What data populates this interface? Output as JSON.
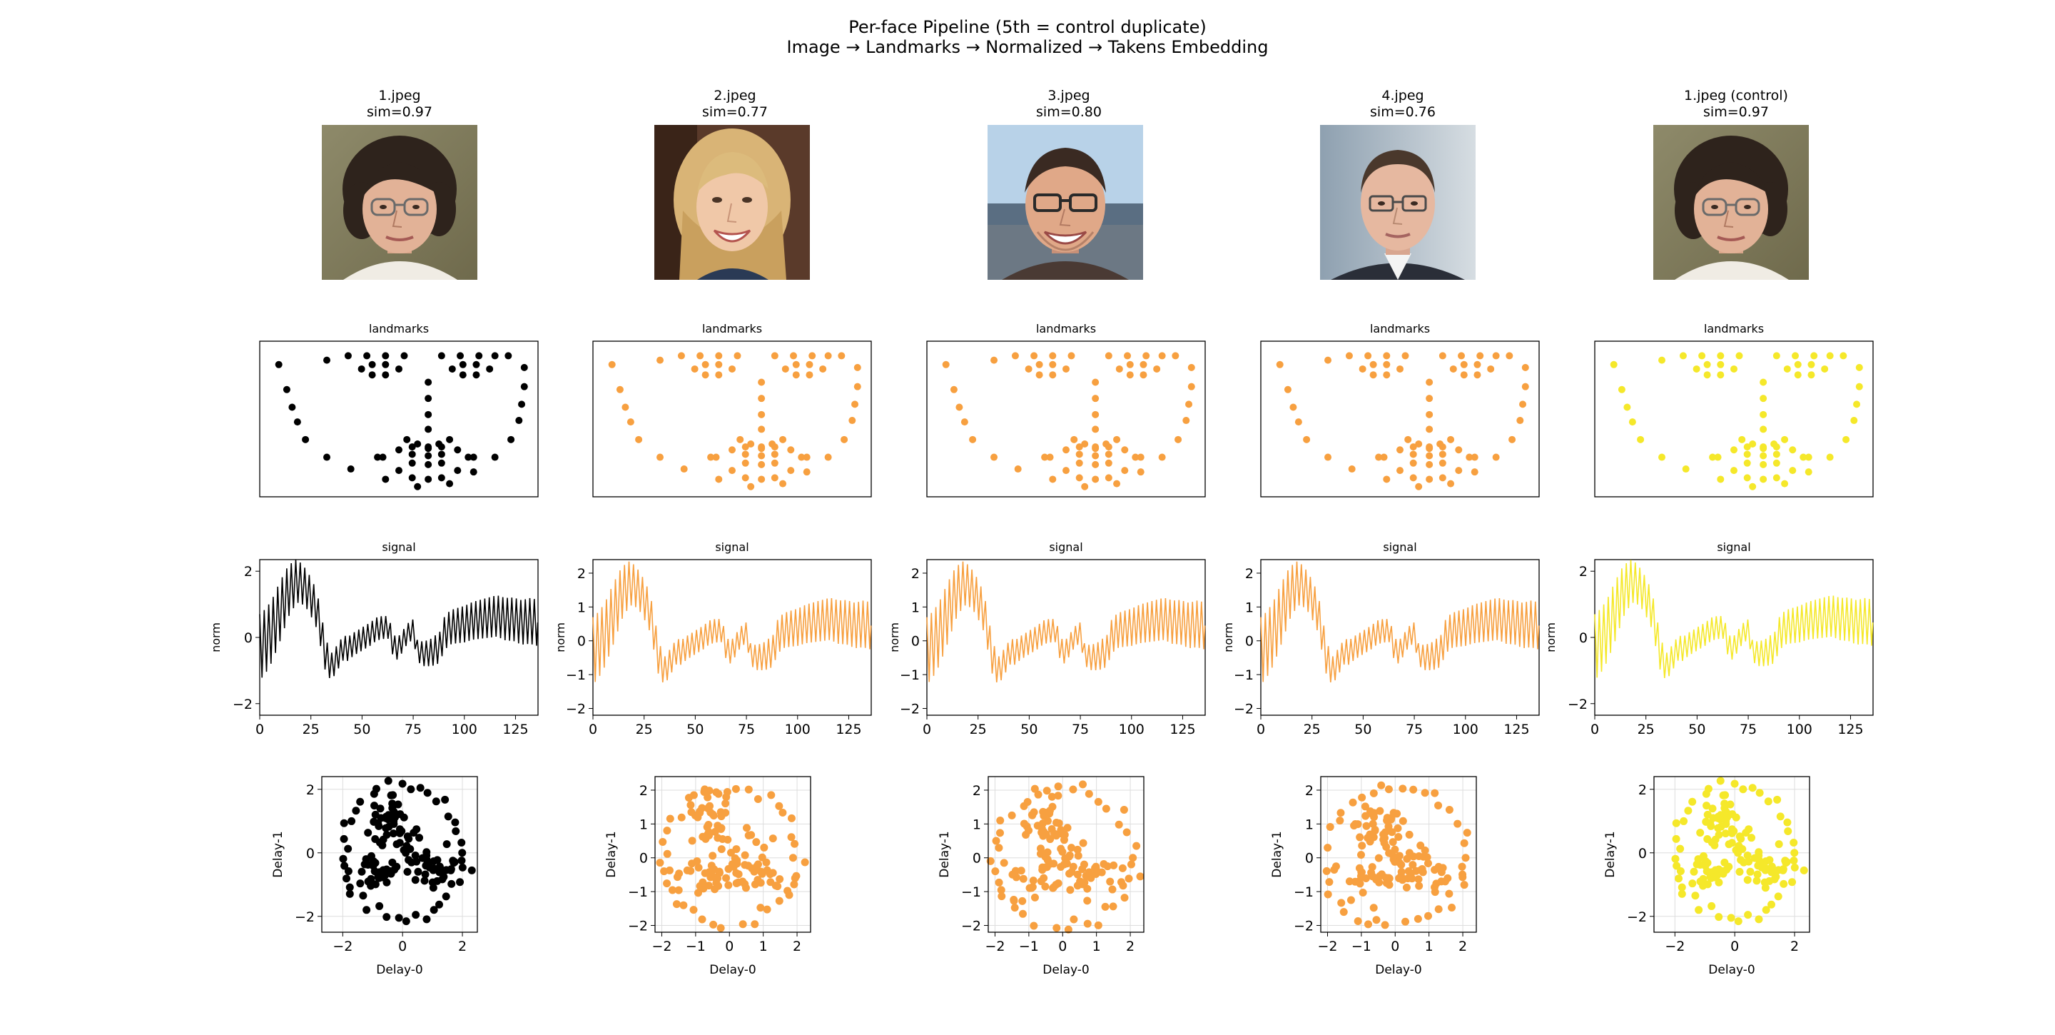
{
  "suptitle": {
    "line1": "Per-face Pipeline (5th = control duplicate)",
    "line2": "Image → Landmarks → Normalized → Takens Embedding"
  },
  "colors": {
    "col1": "#000000",
    "col2": "#f7a040",
    "col3": "#f7a040",
    "col4": "#f7a040",
    "col5": "#f5e82a"
  },
  "columns": [
    {
      "file": "1.jpeg",
      "sim": "sim=0.97",
      "face": "short-dark-curly-hair-glasses-woman"
    },
    {
      "file": "2.jpeg",
      "sim": "sim=0.77",
      "face": "long-blonde-hair-smiling-woman"
    },
    {
      "file": "3.jpeg",
      "sim": "sim=0.80",
      "face": "dark-hair-glasses-smiling-man"
    },
    {
      "file": "4.jpeg",
      "sim": "sim=0.76",
      "face": "short-hair-glasses-man-in-suit"
    },
    {
      "file": "1.jpeg (control)",
      "sim": "sim=0.97",
      "face": "short-dark-curly-hair-glasses-woman"
    }
  ],
  "chart_data": [
    {
      "type": "scatter",
      "title": "landmarks",
      "axes": "hidden",
      "x": [
        0.05,
        0.08,
        0.1,
        0.12,
        0.15,
        0.23,
        0.32,
        0.45,
        0.57,
        0.69,
        0.78,
        0.86,
        0.92,
        0.95,
        0.96,
        0.97,
        0.97,
        0.23,
        0.31,
        0.38,
        0.45,
        0.52,
        0.66,
        0.73,
        0.8,
        0.86,
        0.91,
        0.61,
        0.61,
        0.61,
        0.61,
        0.53,
        0.57,
        0.61,
        0.65,
        0.69,
        0.36,
        0.4,
        0.45,
        0.5,
        0.45,
        0.4,
        0.7,
        0.74,
        0.79,
        0.84,
        0.79,
        0.74,
        0.42,
        0.5,
        0.55,
        0.61,
        0.66,
        0.72,
        0.78,
        0.72,
        0.66,
        0.61,
        0.55,
        0.5,
        0.44,
        0.55,
        0.61,
        0.66,
        0.76,
        0.66,
        0.61,
        0.55
      ],
      "y": [
        0.87,
        0.7,
        0.58,
        0.48,
        0.36,
        0.24,
        0.16,
        0.09,
        0.04,
        0.06,
        0.14,
        0.24,
        0.36,
        0.49,
        0.6,
        0.72,
        0.85,
        0.9,
        0.93,
        0.93,
        0.93,
        0.93,
        0.93,
        0.93,
        0.93,
        0.93,
        0.93,
        0.75,
        0.64,
        0.53,
        0.43,
        0.36,
        0.33,
        0.31,
        0.33,
        0.36,
        0.84,
        0.87,
        0.87,
        0.84,
        0.8,
        0.8,
        0.84,
        0.87,
        0.87,
        0.84,
        0.8,
        0.8,
        0.24,
        0.29,
        0.31,
        0.3,
        0.31,
        0.29,
        0.24,
        0.15,
        0.1,
        0.09,
        0.1,
        0.15,
        0.24,
        0.26,
        0.25,
        0.26,
        0.24,
        0.2,
        0.19,
        0.2
      ]
    },
    {
      "type": "line",
      "title": "signal",
      "ylabel": "norm",
      "xlim": [
        0,
        136
      ],
      "xticks": [
        0,
        25,
        50,
        75,
        100,
        125
      ],
      "envelope_x": [
        0,
        3,
        6,
        10,
        14,
        18,
        20,
        23,
        26,
        28,
        30,
        32,
        35,
        38,
        41,
        43,
        46,
        50,
        54,
        57,
        60,
        63,
        65,
        67,
        69,
        72,
        75,
        77,
        80,
        84,
        88,
        90,
        93,
        96,
        100,
        104,
        108,
        112,
        116,
        120,
        124,
        128,
        132,
        135
      ],
      "envelope_y": [
        -0.3,
        -0.1,
        0.2,
        0.8,
        1.4,
        1.7,
        1.65,
        1.45,
        1.1,
        0.8,
        0.2,
        -0.5,
        -0.9,
        -0.6,
        -0.3,
        -0.35,
        -0.2,
        -0.05,
        0.1,
        0.25,
        0.3,
        0.3,
        -0.2,
        -0.35,
        -0.2,
        0.1,
        0.25,
        -0.4,
        -0.5,
        -0.45,
        -0.3,
        0.1,
        0.3,
        0.35,
        0.4,
        0.5,
        0.55,
        0.6,
        0.65,
        0.55,
        0.55,
        0.45,
        0.5,
        0.45
      ],
      "amplitude_x": [
        0,
        10,
        20,
        30,
        36,
        45,
        60,
        75,
        90,
        110,
        135
      ],
      "amplitude_y": [
        1.0,
        0.9,
        0.6,
        0.55,
        0.4,
        0.35,
        0.35,
        0.3,
        0.5,
        0.6,
        0.7
      ],
      "oscillation_period": 2.2,
      "panels": [
        {
          "ylim": [
            -2.35,
            2.35
          ],
          "yticks": [
            -2,
            0,
            2
          ]
        },
        {
          "ylim": [
            -2.2,
            2.4
          ],
          "yticks": [
            -2,
            -1,
            0,
            1,
            2
          ]
        },
        {
          "ylim": [
            -2.2,
            2.4
          ],
          "yticks": [
            -2,
            -1,
            0,
            1,
            2
          ]
        },
        {
          "ylim": [
            -2.2,
            2.4
          ],
          "yticks": [
            -2,
            -1,
            0,
            1,
            2
          ]
        },
        {
          "ylim": [
            -2.35,
            2.35
          ],
          "yticks": [
            -2,
            0,
            2
          ]
        }
      ]
    },
    {
      "type": "scatter",
      "title": "",
      "xlabel": "Delay-0",
      "ylabel": "Delay-1",
      "grid": true,
      "ring_radius": 2.05,
      "ring_points": 40,
      "clusters": [
        {
          "center": [
            -0.5,
            1.0
          ],
          "spread": [
            0.35,
            0.4
          ],
          "count": 38
        },
        {
          "center": [
            0.9,
            -0.5
          ],
          "spread": [
            0.55,
            0.3
          ],
          "count": 32
        },
        {
          "center": [
            -0.8,
            -0.6
          ],
          "spread": [
            0.45,
            0.3
          ],
          "count": 28
        },
        {
          "center": [
            0.3,
            0.2
          ],
          "spread": [
            0.35,
            0.35
          ],
          "count": 14
        }
      ],
      "panels": [
        {
          "xlim": [
            -2.7,
            2.5
          ],
          "ylim": [
            -2.5,
            2.4
          ],
          "xticks": [
            -2,
            0,
            2
          ],
          "yticks": [
            -2,
            0,
            2
          ]
        },
        {
          "xlim": [
            -2.2,
            2.4
          ],
          "ylim": [
            -2.2,
            2.4
          ],
          "xticks": [
            -2,
            -1,
            0,
            1,
            2
          ],
          "yticks": [
            -2,
            -1,
            0,
            1,
            2
          ]
        },
        {
          "xlim": [
            -2.2,
            2.4
          ],
          "ylim": [
            -2.2,
            2.4
          ],
          "xticks": [
            -2,
            -1,
            0,
            1,
            2
          ],
          "yticks": [
            -2,
            -1,
            0,
            1,
            2
          ]
        },
        {
          "xlim": [
            -2.2,
            2.4
          ],
          "ylim": [
            -2.2,
            2.4
          ],
          "xticks": [
            -2,
            -1,
            0,
            1,
            2
          ],
          "yticks": [
            -2,
            -1,
            0,
            1,
            2
          ]
        },
        {
          "xlim": [
            -2.7,
            2.5
          ],
          "ylim": [
            -2.5,
            2.4
          ],
          "xticks": [
            -2,
            0,
            2
          ],
          "yticks": [
            -2,
            0,
            2
          ]
        }
      ]
    }
  ]
}
